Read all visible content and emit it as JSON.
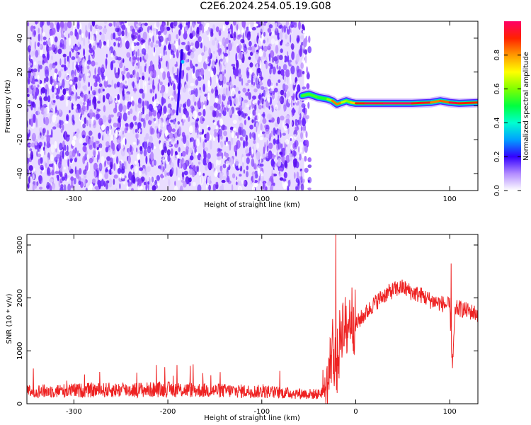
{
  "title": "C2E6.2024.254.05.19.G08",
  "colors": {
    "snr_line": "#ee2222",
    "background": "#ffffff"
  },
  "chart_data": [
    {
      "type": "heatmap",
      "xlabel": "Height of straight line (km)",
      "ylabel": "Frequency (Hz)",
      "xlim": [
        -350,
        130
      ],
      "ylim": [
        -50,
        50
      ],
      "xticks": [
        -300,
        -200,
        -100,
        0,
        100
      ],
      "yticks": [
        -40,
        -20,
        0,
        20,
        40
      ],
      "colorbar": {
        "label": "Normalized spectral amplitude",
        "range": [
          0,
          1
        ],
        "ticks": [
          0.0,
          0.2,
          0.4,
          0.6,
          0.8
        ]
      },
      "noise_region_x": [
        -350,
        -55
      ],
      "signal_ridge": {
        "x": [
          -57,
          -50,
          -40,
          -30,
          -25,
          -20,
          -15,
          -10,
          -5,
          0,
          10,
          30,
          60,
          80,
          90,
          100,
          110,
          130
        ],
        "freq": [
          6,
          7,
          5,
          4,
          3,
          1,
          2,
          3,
          2,
          1.5,
          1.5,
          1.5,
          1.5,
          2,
          3,
          2,
          1.5,
          2
        ],
        "amplitude": [
          0.5,
          0.6,
          0.5,
          0.55,
          0.7,
          0.95,
          0.7,
          0.6,
          0.6,
          0.9,
          0.95,
          1.0,
          1.0,
          0.85,
          0.8,
          0.9,
          1.0,
          0.8
        ]
      },
      "artifact_line": {
        "x": [
          -190,
          -185
        ],
        "freq": [
          -5,
          33
        ]
      }
    },
    {
      "type": "line",
      "xlabel": "Height of straight line (km)",
      "ylabel": "SNR (10 * v/v)",
      "xlim": [
        -350,
        130
      ],
      "ylim": [
        0,
        3200
      ],
      "xticks": [
        -300,
        -200,
        -100,
        0,
        100
      ],
      "yticks": [
        0,
        1000,
        2000,
        3000
      ],
      "series": [
        {
          "x": [
            -350,
            -300,
            -250,
            -200,
            -150,
            -100,
            -70,
            -40,
            -30,
            -25,
            -20,
            -15,
            -10,
            -5,
            0,
            10,
            20,
            30,
            40,
            50,
            60,
            70,
            80,
            90,
            100,
            103,
            106,
            110,
            120,
            130
          ],
          "y": [
            230,
            250,
            260,
            270,
            250,
            230,
            200,
            180,
            300,
            1100,
            700,
            1500,
            1400,
            1700,
            1500,
            1700,
            1900,
            2050,
            2150,
            2200,
            2100,
            2050,
            1950,
            1900,
            1850,
            700,
            1800,
            1800,
            1750,
            1700
          ]
        }
      ]
    }
  ]
}
